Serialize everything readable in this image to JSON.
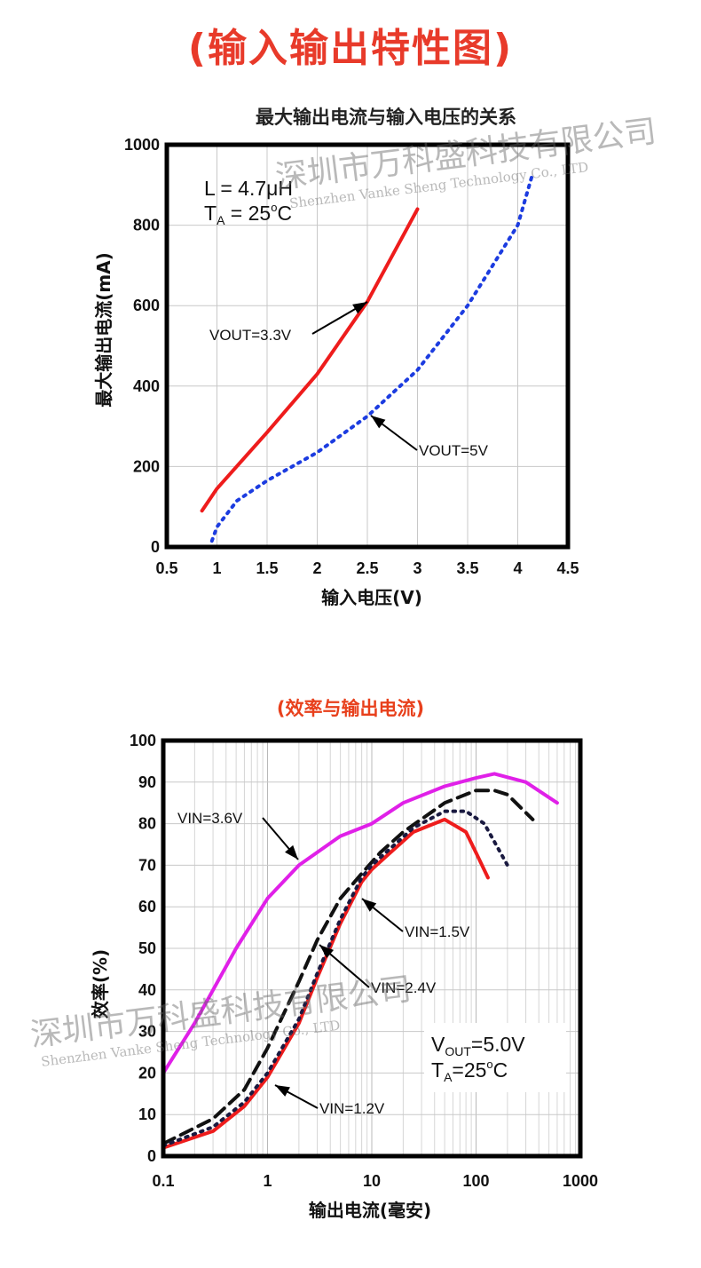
{
  "page_title": "(输入输出特性图)",
  "chart_data": [
    {
      "type": "line",
      "title": "最大输出电流与输入电压的关系",
      "xlabel": "输入电压(V)",
      "ylabel": "最大输出电流(mA)",
      "xlim": [
        0.5,
        4.5
      ],
      "ylim": [
        0,
        1000
      ],
      "x_ticks": [
        "0.5",
        "1",
        "1.5",
        "2",
        "2.5",
        "3",
        "3.5",
        "4",
        "4.5"
      ],
      "y_ticks": [
        "0",
        "200",
        "400",
        "600",
        "800",
        "1000"
      ],
      "grid": true,
      "annotation_lines": [
        "L = 4.7μH",
        "T",
        "A",
        " = 25",
        "o",
        "C"
      ],
      "series": [
        {
          "name": "VOUT=3.3V",
          "color": "#ee1c1c",
          "style": "solid",
          "x": [
            0.85,
            1.0,
            1.5,
            2.0,
            2.5,
            3.0
          ],
          "y": [
            90,
            145,
            285,
            430,
            610,
            840
          ]
        },
        {
          "name": "VOUT=5V",
          "color": "#1c3ce0",
          "style": "dotted",
          "x": [
            0.95,
            1.0,
            1.2,
            1.5,
            2.0,
            2.5,
            3.0,
            3.5,
            4.0,
            4.15
          ],
          "y": [
            15,
            50,
            115,
            165,
            235,
            325,
            440,
            600,
            800,
            930
          ]
        }
      ]
    },
    {
      "type": "line",
      "title": "(效率与输出电流)",
      "xlabel": "输出电流(毫安)",
      "ylabel": "效率(%)",
      "xscale": "log",
      "xlim": [
        0.1,
        1000
      ],
      "ylim": [
        0,
        100
      ],
      "x_ticks": [
        "0.1",
        "1",
        "10",
        "100",
        "1000"
      ],
      "y_ticks": [
        "0",
        "10",
        "20",
        "30",
        "40",
        "50",
        "60",
        "70",
        "80",
        "90",
        "100"
      ],
      "grid": true,
      "annotation": {
        "line1_main": "V",
        "line1_sub": "OUT",
        "line1_end": "=5.0V",
        "line2_main": "T",
        "line2_sub": "A",
        "line2_end": "=25",
        "line2_sup": "o",
        "line2_tail": "C"
      },
      "series": [
        {
          "name": "VIN=3.6V",
          "color": "#e020e8",
          "style": "solid",
          "x": [
            0.1,
            0.2,
            0.5,
            1,
            2,
            5,
            10,
            20,
            50,
            100,
            150,
            300,
            600
          ],
          "y": [
            20,
            32,
            50,
            62,
            70,
            77,
            80,
            85,
            89,
            91,
            92,
            90,
            85
          ]
        },
        {
          "name": "VIN=2.4V",
          "color": "#111111",
          "style": "dashed",
          "x": [
            0.1,
            0.3,
            0.6,
            1,
            2,
            3,
            5,
            8,
            12,
            20,
            50,
            100,
            150,
            200,
            350
          ],
          "y": [
            3,
            9,
            16,
            26,
            42,
            52,
            62,
            68,
            73,
            78,
            85,
            88,
            88,
            87,
            81
          ]
        },
        {
          "name": "VIN=1.5V",
          "color": "#ee1c1c",
          "style": "solid",
          "x": [
            0.1,
            0.3,
            0.6,
            1,
            2,
            3,
            5,
            8,
            10,
            15,
            25,
            50,
            80,
            100,
            130
          ],
          "y": [
            2,
            6,
            12,
            19,
            32,
            43,
            56,
            66,
            69,
            73,
            78,
            81,
            78,
            73,
            67
          ]
        },
        {
          "name": "VIN=1.2V",
          "color": "#1a1a40",
          "style": "dotted",
          "x": [
            0.1,
            0.3,
            0.6,
            1,
            2,
            3,
            5,
            8,
            10,
            15,
            25,
            50,
            80,
            120,
            200
          ],
          "y": [
            2.5,
            7,
            13,
            20,
            33,
            44,
            57,
            67,
            70,
            74,
            79,
            83,
            83,
            80,
            70
          ]
        }
      ]
    }
  ],
  "watermark": {
    "cn": "深圳市万科盛科技有限公司",
    "en": "Shenzhen Vanke Sheng Technology Co., LTD"
  }
}
